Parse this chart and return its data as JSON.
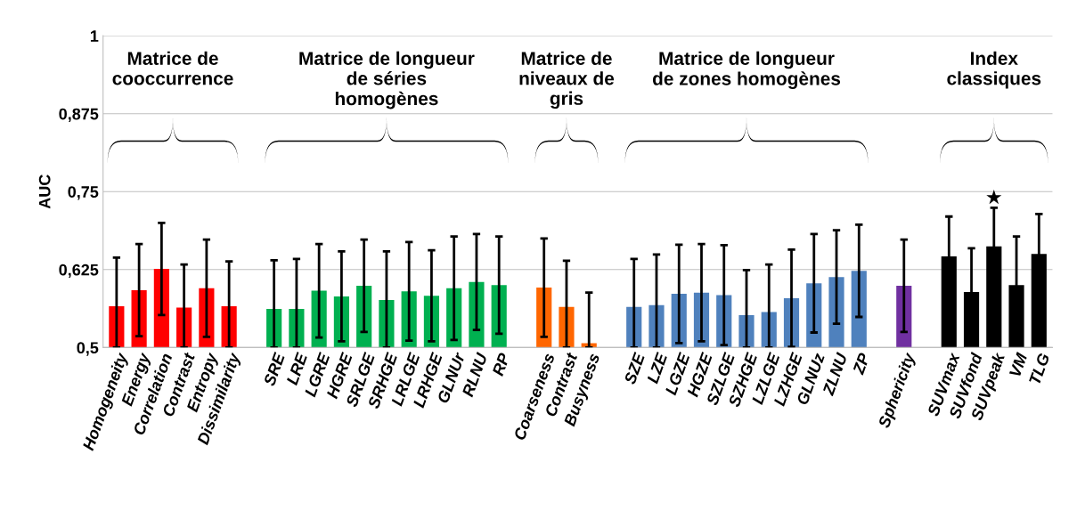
{
  "chart_data": {
    "type": "bar",
    "ylabel": "AUC",
    "categories": [
      "Homogeneity",
      "Energy",
      "Correlation",
      "Contrast",
      "Entropy",
      "Dissimilarity",
      null,
      "SRE",
      "LRE",
      "LGRE",
      "HGRE",
      "SRLGE",
      "SRHGE",
      "LRLGE",
      "LRHGE",
      "GLNUr",
      "RLNU",
      "RP",
      null,
      "Coarseness",
      "Contrast",
      "Busyness",
      null,
      "SZE",
      "LZE",
      "LGZE",
      "HGZE",
      "SZLGE",
      "SZHGE",
      "LZLGE",
      "LZHGE",
      "GLNUz",
      "ZLNU",
      "ZP",
      null,
      "Sphericity",
      null,
      "SUVmax",
      "SUVfond",
      "SUVpeak",
      "VM",
      "TLG"
    ],
    "values": [
      0.566,
      0.592,
      0.626,
      0.564,
      0.595,
      0.566,
      null,
      0.562,
      0.562,
      0.591,
      0.582,
      0.599,
      0.576,
      0.59,
      0.583,
      0.595,
      0.605,
      0.6,
      null,
      0.596,
      0.565,
      0.507,
      null,
      0.565,
      0.568,
      0.586,
      0.588,
      0.584,
      0.552,
      0.557,
      0.579,
      0.603,
      0.613,
      0.623,
      null,
      0.599,
      null,
      0.646,
      0.589,
      0.662,
      0.6,
      0.65
    ],
    "errors": [
      [
        0.5,
        0.644
      ],
      0.074,
      0.074,
      [
        0.5,
        0.633
      ],
      0.078,
      [
        0.5,
        0.638
      ],
      null,
      [
        0.5,
        0.64
      ],
      [
        0.5,
        0.642
      ],
      0.075,
      0.072,
      0.074,
      [
        0.5,
        0.654
      ],
      0.079,
      0.073,
      0.083,
      0.077,
      0.078,
      null,
      0.079,
      [
        0.5,
        0.639
      ],
      [
        0.5,
        0.588
      ],
      null,
      [
        0.5,
        0.642
      ],
      [
        0.5,
        0.649
      ],
      0.079,
      0.078,
      0.08,
      [
        0.5,
        0.624
      ],
      [
        0.5,
        0.633
      ],
      0.078,
      0.079,
      0.075,
      0.074,
      null,
      0.074,
      null,
      0.064,
      0.07,
      0.062,
      0.078,
      0.064
    ],
    "colors": [
      "#ff0000",
      "#ff0000",
      "#ff0000",
      "#ff0000",
      "#ff0000",
      "#ff0000",
      "#ffffff",
      "#00b050",
      "#00b050",
      "#00b050",
      "#00b050",
      "#00b050",
      "#00b050",
      "#00b050",
      "#00b050",
      "#00b050",
      "#00b050",
      "#00b050",
      "#ffffff",
      "#ff6600",
      "#ff6600",
      "#ff6600",
      "#ffffff",
      "#4f81bd",
      "#4f81bd",
      "#4f81bd",
      "#4f81bd",
      "#4f81bd",
      "#4f81bd",
      "#4f81bd",
      "#4f81bd",
      "#4f81bd",
      "#4f81bd",
      "#4f81bd",
      "#ffffff",
      "#7030a0",
      "#ffffff",
      "#000000",
      "#000000",
      "#000000",
      "#000000",
      "#000000"
    ],
    "ylim": [
      0.5,
      1
    ],
    "yticks": [
      {
        "value": 0.5,
        "label": "0,5"
      },
      {
        "value": 0.625,
        "label": "0,625"
      },
      {
        "value": 0.75,
        "label": "0,75"
      },
      {
        "value": 0.875,
        "label": "0,875"
      },
      {
        "value": 1,
        "label": "1"
      }
    ],
    "grid": "y",
    "legend": false,
    "annotations": [
      "Matrice de\ncooccurrence",
      "Matrice de longueur\nde séries\nhomogènes",
      "Matrice de\nniveaux de\ngris",
      "Matrice de longueur\nde zones homogènes",
      "Index\nclassiques",
      "★"
    ]
  }
}
